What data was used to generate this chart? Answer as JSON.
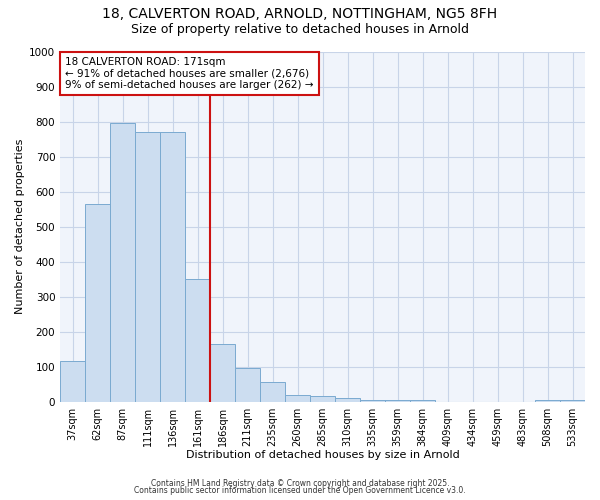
{
  "title1": "18, CALVERTON ROAD, ARNOLD, NOTTINGHAM, NG5 8FH",
  "title2": "Size of property relative to detached houses in Arnold",
  "xlabel": "Distribution of detached houses by size in Arnold",
  "ylabel": "Number of detached properties",
  "categories": [
    "37sqm",
    "62sqm",
    "87sqm",
    "111sqm",
    "136sqm",
    "161sqm",
    "186sqm",
    "211sqm",
    "235sqm",
    "260sqm",
    "285sqm",
    "310sqm",
    "335sqm",
    "359sqm",
    "384sqm",
    "409sqm",
    "434sqm",
    "459sqm",
    "483sqm",
    "508sqm",
    "533sqm"
  ],
  "values": [
    115,
    565,
    795,
    770,
    770,
    350,
    165,
    95,
    55,
    20,
    15,
    10,
    5,
    5,
    5,
    0,
    0,
    0,
    0,
    5,
    5
  ],
  "bar_color": "#ccddf0",
  "bar_edge_color": "#7aaad0",
  "vline_color": "#cc1111",
  "vline_pos": 5.5,
  "annotation_text": "18 CALVERTON ROAD: 171sqm\n← 91% of detached houses are smaller (2,676)\n9% of semi-detached houses are larger (262) →",
  "annotation_box_facecolor": "#ffffff",
  "annotation_box_edgecolor": "#cc1111",
  "ylim": [
    0,
    1000
  ],
  "yticks": [
    0,
    100,
    200,
    300,
    400,
    500,
    600,
    700,
    800,
    900,
    1000
  ],
  "bg_color": "#ffffff",
  "plot_bg_color": "#f0f4fb",
  "grid_color": "#c8d4e8",
  "footer1": "Contains HM Land Registry data © Crown copyright and database right 2025.",
  "footer2": "Contains public sector information licensed under the Open Government Licence v3.0.",
  "title1_fontsize": 10,
  "title2_fontsize": 9
}
